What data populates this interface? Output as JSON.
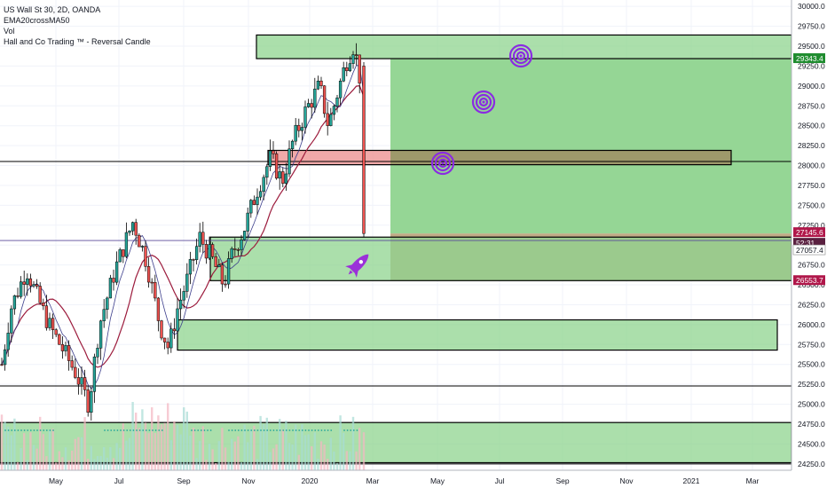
{
  "header": {
    "symbol_line": "US Wall St 30, 2D, OANDA",
    "indicators": [
      "EMA20crossMA50",
      "Vol",
      "Hall and Co Trading ™ - Reversal Candle"
    ]
  },
  "price_tags": [
    {
      "value": "29343.4",
      "color": "#1e8c2e"
    },
    {
      "value": "27145.6",
      "color": "#b0174a"
    },
    {
      "value": "52:31",
      "color": "#5a2040"
    },
    {
      "value": "27057.4",
      "color": "#ffffff"
    },
    {
      "value": "26553.7",
      "color": "#b0174a"
    }
  ],
  "colors": {
    "up_candle": "#26a69a",
    "down_candle": "#ef5350",
    "ema20": "#3c3e8c",
    "ma50": "#9c1b3c",
    "zone_green": "#8fd48f",
    "zone_red": "#ef9a9a",
    "zone_brown": "#b9a27a",
    "target_purple": "#8a2be2",
    "volume": "#f4b6c2",
    "volume_up": "#a6dcd4"
  },
  "icons": [
    "target-icon",
    "target-icon",
    "target-icon",
    "rocket-icon"
  ],
  "chart_data": {
    "type": "candlestick",
    "title": "US Wall St 30, 2D, OANDA",
    "y_axis_ticks": [
      24250,
      24500,
      24750,
      25000,
      25250,
      25500,
      25750,
      26000,
      26250,
      26500,
      26750,
      27000,
      27250,
      27500,
      27750,
      28000,
      28250,
      28500,
      28750,
      29000,
      29250,
      29500,
      29750,
      30000
    ],
    "y_axis_tick_labels": [
      "24250.0",
      "24500.0",
      "24750.0",
      "25000.0",
      "25250.0",
      "25500.0",
      "25750.0",
      "26000.0",
      "26250.0",
      "26500.0",
      "26750.0",
      "27000.0",
      "27250.0",
      "27500.0",
      "27750.0",
      "28000.0",
      "28250.0",
      "28500.0",
      "28750.0",
      "29000.0",
      "29250.0",
      "29500.0",
      "29750.0",
      "30000.0"
    ],
    "x_axis_ticks": [
      "May",
      "Jul",
      "Sep",
      "Nov",
      "2020",
      "Mar",
      "May",
      "Jul",
      "Sep",
      "Nov",
      "2021",
      "Mar"
    ],
    "ylim": [
      24170,
      30080
    ],
    "price_levels": {
      "last": 27145.6,
      "cross": 27057.4,
      "support": 26553.7,
      "target": 29343.4
    },
    "horizontal_lines": [
      28050,
      25230,
      24250
    ],
    "zones": [
      {
        "name": "top-supply",
        "y_from": 29343,
        "y_to": 29640,
        "color": "green"
      },
      {
        "name": "mid-zone",
        "y_from": 28010,
        "y_to": 28190,
        "color": "brown-red"
      },
      {
        "name": "demand-zone",
        "y_from": 26553,
        "y_to": 27080,
        "color": "green"
      },
      {
        "name": "lower-zone",
        "y_from": 25680,
        "y_to": 26060,
        "color": "green"
      },
      {
        "name": "bottom-zone",
        "y_from": 24260,
        "y_to": 24770,
        "color": "green"
      },
      {
        "name": "long-target",
        "y_from": 27145,
        "y_to": 29343,
        "color": "green"
      },
      {
        "name": "long-stop",
        "y_from": 26553,
        "y_to": 27145,
        "color": "brown"
      }
    ]
  }
}
